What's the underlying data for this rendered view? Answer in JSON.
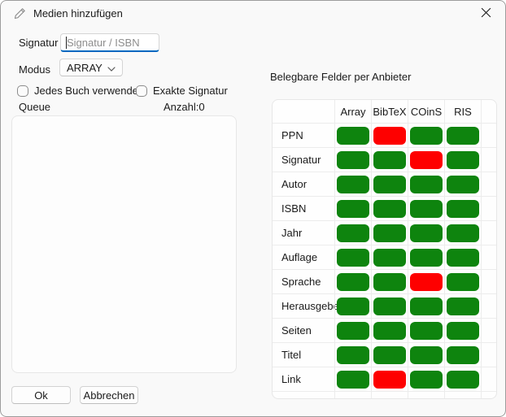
{
  "window": {
    "title": "Medien hinzufügen",
    "icons": {
      "titlebar": "pencil-icon",
      "close": "close-icon"
    }
  },
  "form": {
    "signatur_label": "Signatur",
    "signatur_placeholder": "Signatur / ISBN",
    "modus_label": "Modus",
    "modus_value": "ARRAY",
    "checkbox_jedes_buch_label": "Jedes Buch verwenden",
    "checkbox_jedes_buch_checked": false,
    "checkbox_exakte_signatur_label": "Exakte Signatur",
    "checkbox_exakte_signatur_checked": false,
    "queue_label": "Queue",
    "anzahl_label": "Anzahl:0",
    "queue_items": []
  },
  "buttons": {
    "ok": "Ok",
    "cancel": "Abbrechen"
  },
  "panel": {
    "heading": "Belegbare Felder per Anbieter",
    "columns": [
      "Array",
      "BibTeX",
      "COinS",
      "RIS"
    ],
    "rows": [
      {
        "label": "PPN",
        "cells": [
          true,
          false,
          true,
          true
        ]
      },
      {
        "label": "Signatur",
        "cells": [
          true,
          true,
          false,
          true
        ]
      },
      {
        "label": "Autor",
        "cells": [
          true,
          true,
          true,
          true
        ]
      },
      {
        "label": "ISBN",
        "cells": [
          true,
          true,
          true,
          true
        ]
      },
      {
        "label": "Jahr",
        "cells": [
          true,
          true,
          true,
          true
        ]
      },
      {
        "label": "Auflage",
        "cells": [
          true,
          true,
          true,
          true
        ]
      },
      {
        "label": "Sprache",
        "cells": [
          true,
          true,
          false,
          true
        ]
      },
      {
        "label": "Herausgeber",
        "cells": [
          true,
          true,
          true,
          true
        ]
      },
      {
        "label": "Seiten",
        "cells": [
          true,
          true,
          true,
          true
        ]
      },
      {
        "label": "Titel",
        "cells": [
          true,
          true,
          true,
          true
        ]
      },
      {
        "label": "Link",
        "cells": [
          true,
          false,
          true,
          true
        ]
      }
    ],
    "colors": {
      "available": "#0e840e",
      "unavailable": "#fe0000",
      "accent": "#0067c0"
    }
  }
}
